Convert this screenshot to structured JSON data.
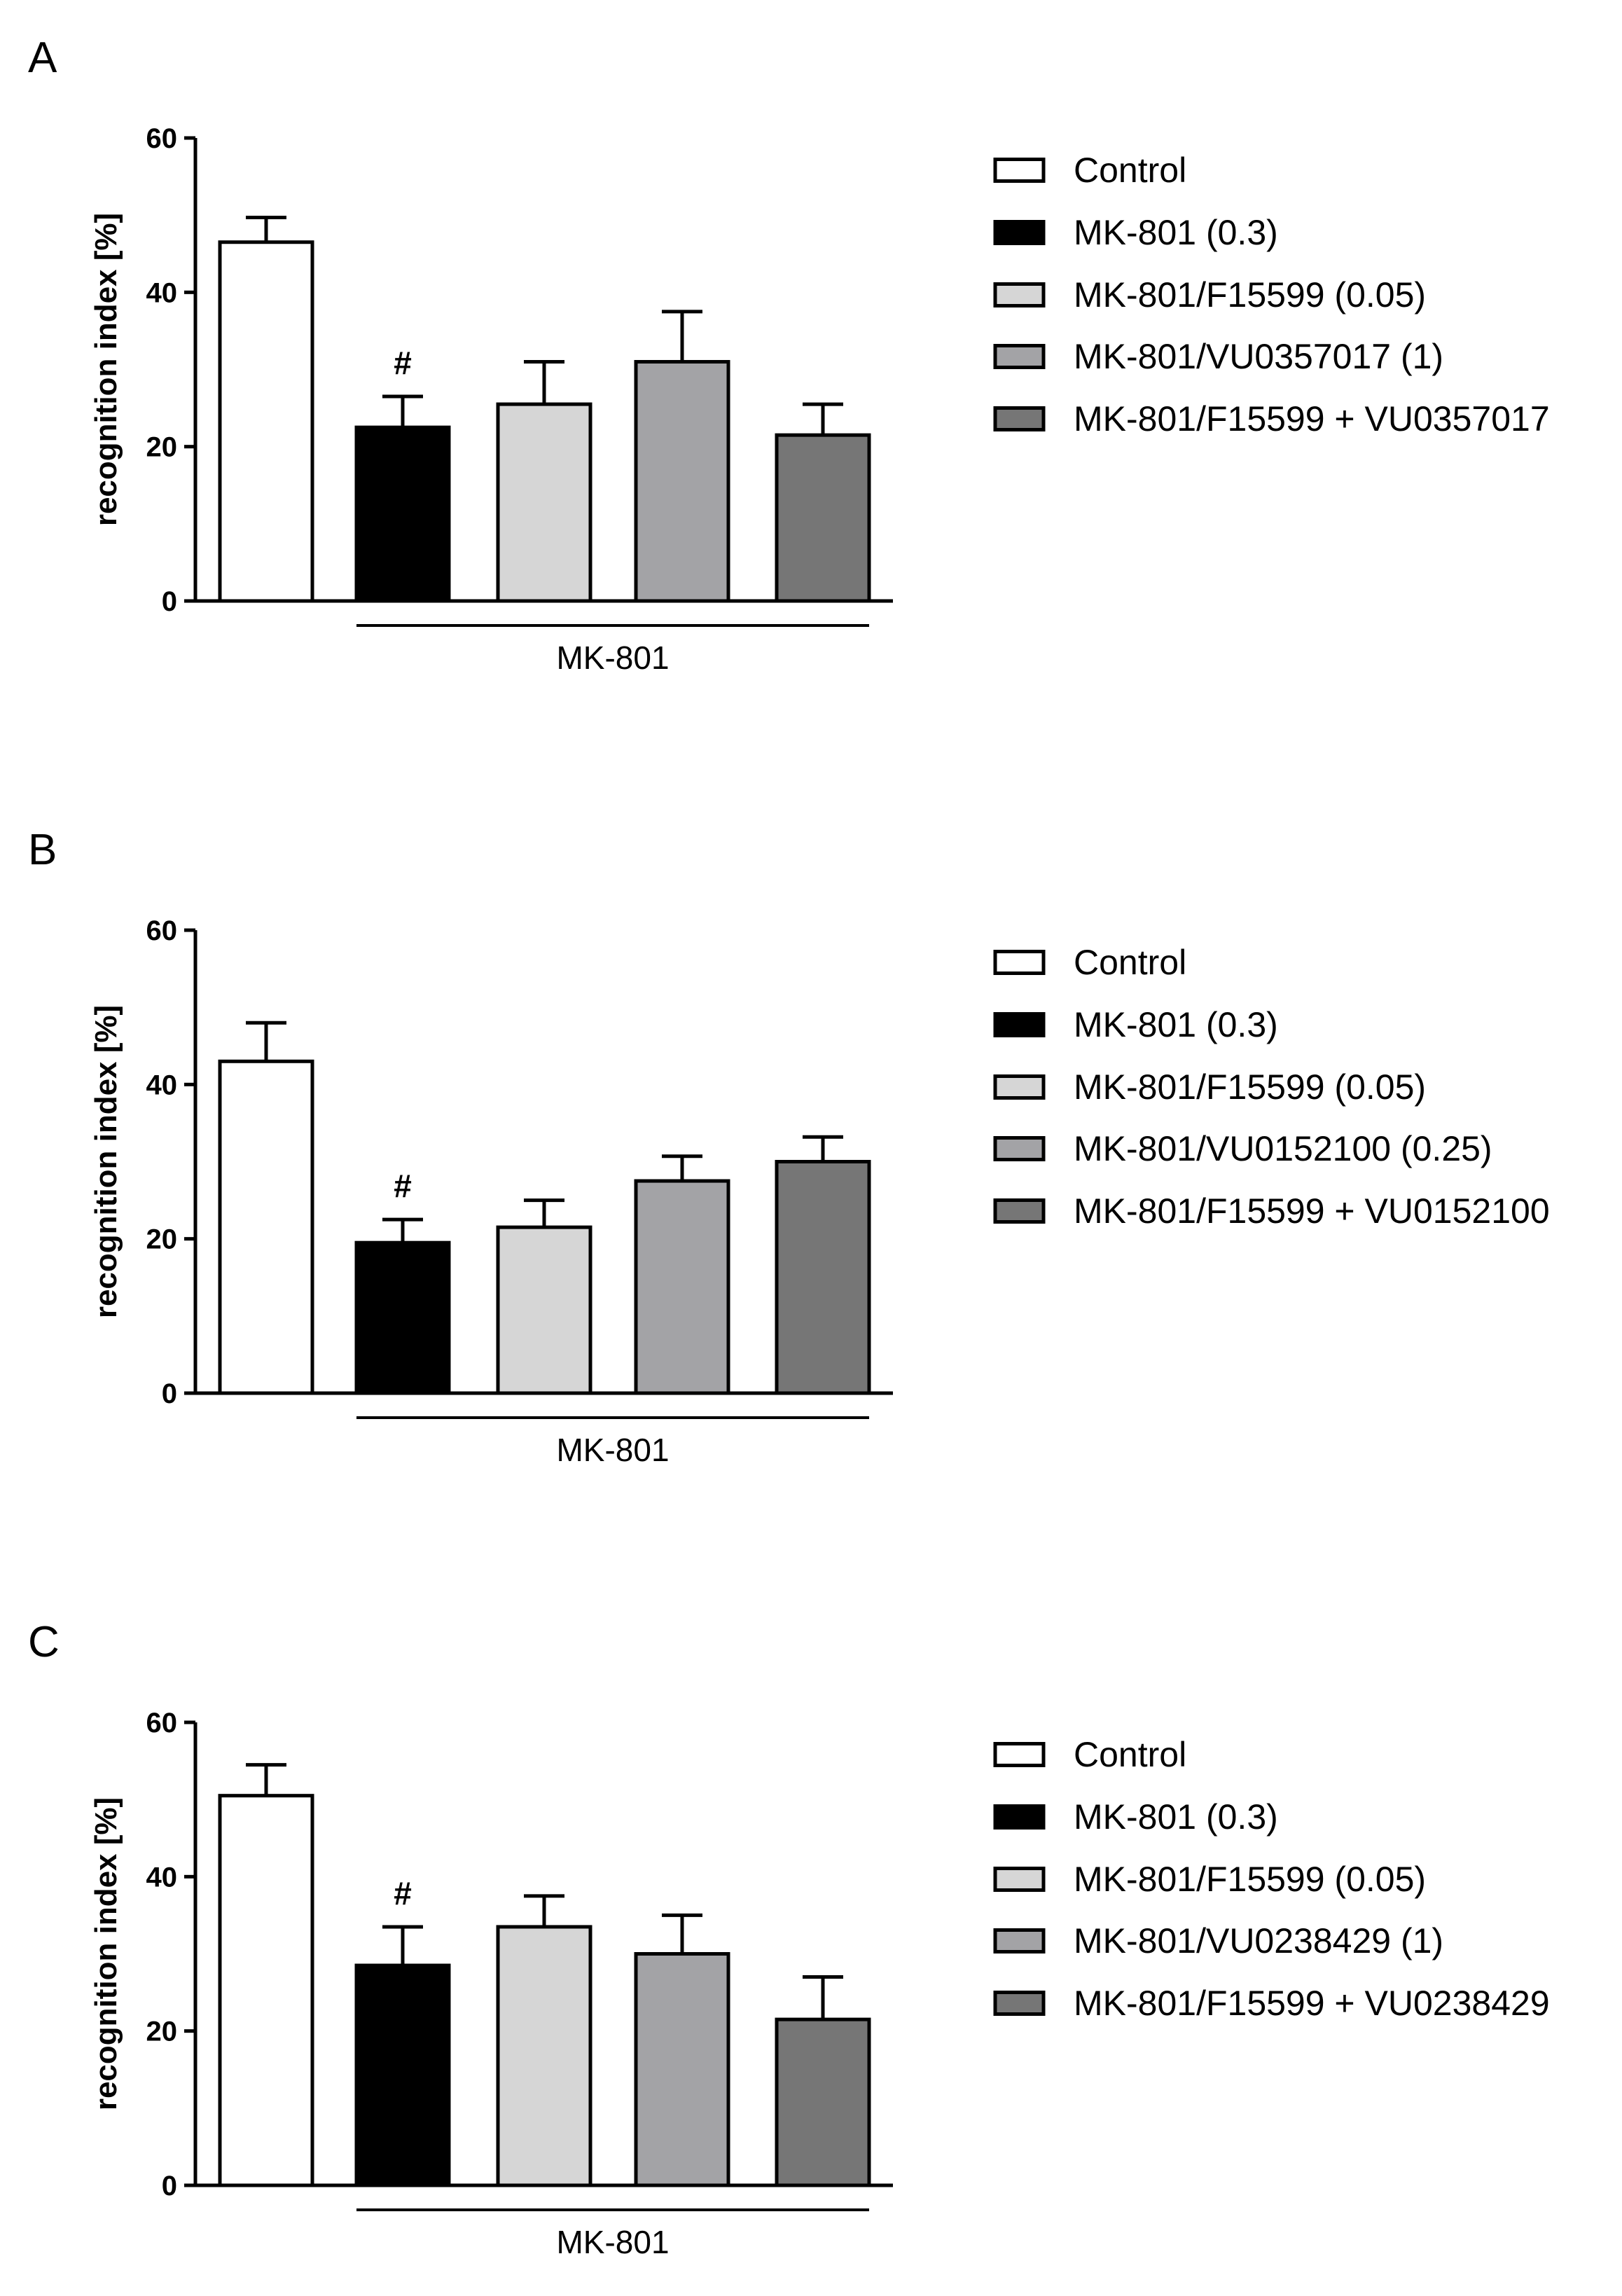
{
  "chart_data": [
    {
      "panel": "A",
      "type": "bar",
      "categories": [
        "Control",
        "MK-801 (0.3)",
        "MK-801/F15599 (0.05)",
        "MK-801/VU0357017 (1)",
        "MK-801/F15599 + VU0357017"
      ],
      "values": [
        46.5,
        22.5,
        25.5,
        31,
        21.5
      ],
      "errors": [
        3.2,
        4,
        5.5,
        6.5,
        4
      ],
      "colors": [
        "#ffffff",
        "#000000",
        "#d6d6d6",
        "#a3a3a6",
        "#767676"
      ],
      "significance": [
        {
          "category_index": 1,
          "label": "#"
        }
      ],
      "ylabel": "recognition index [%]",
      "xlabel": "",
      "ylim": [
        0,
        60
      ],
      "yticks": [
        0,
        20,
        40,
        60
      ],
      "group": {
        "label": "MK-801",
        "from_index": 1,
        "to_index": 4
      },
      "legend": [
        "Control",
        "MK-801 (0.3)",
        "MK-801/F15599 (0.05)",
        "MK-801/VU0357017 (1)",
        "MK-801/F15599 + VU0357017"
      ]
    },
    {
      "panel": "B",
      "type": "bar",
      "categories": [
        "Control",
        "MK-801 (0.3)",
        "MK-801/F15599 (0.05)",
        "MK-801/VU0152100 (0.25)",
        "MK-801/F15599 + VU0152100"
      ],
      "values": [
        43,
        19.5,
        21.5,
        27.5,
        30
      ],
      "errors": [
        5,
        3,
        3.5,
        3.2,
        3.2
      ],
      "colors": [
        "#ffffff",
        "#000000",
        "#d6d6d6",
        "#a3a3a6",
        "#767676"
      ],
      "significance": [
        {
          "category_index": 1,
          "label": "#"
        }
      ],
      "ylabel": "recognition index [%]",
      "xlabel": "",
      "ylim": [
        0,
        60
      ],
      "yticks": [
        0,
        20,
        40,
        60
      ],
      "group": {
        "label": "MK-801",
        "from_index": 1,
        "to_index": 4
      },
      "legend": [
        "Control",
        "MK-801 (0.3)",
        "MK-801/F15599 (0.05)",
        "MK-801/VU0152100 (0.25)",
        "MK-801/F15599 + VU0152100"
      ]
    },
    {
      "panel": "C",
      "type": "bar",
      "categories": [
        "Control",
        "MK-801 (0.3)",
        "MK-801/F15599 (0.05)",
        "MK-801/VU0238429 (1)",
        "MK-801/F15599 + VU0238429"
      ],
      "values": [
        50.5,
        28.5,
        33.5,
        30,
        21.5
      ],
      "errors": [
        4,
        5,
        4,
        5,
        5.5
      ],
      "colors": [
        "#ffffff",
        "#000000",
        "#d6d6d6",
        "#a3a3a6",
        "#767676"
      ],
      "significance": [
        {
          "category_index": 1,
          "label": "#"
        }
      ],
      "ylabel": "recognition index [%]",
      "xlabel": "",
      "ylim": [
        0,
        60
      ],
      "yticks": [
        0,
        20,
        40,
        60
      ],
      "group": {
        "label": "MK-801",
        "from_index": 1,
        "to_index": 4
      },
      "legend": [
        "Control",
        "MK-801 (0.3)",
        "MK-801/F15599 (0.05)",
        "MK-801/VU0238429 (1)",
        "MK-801/F15599 + VU0238429"
      ]
    }
  ]
}
